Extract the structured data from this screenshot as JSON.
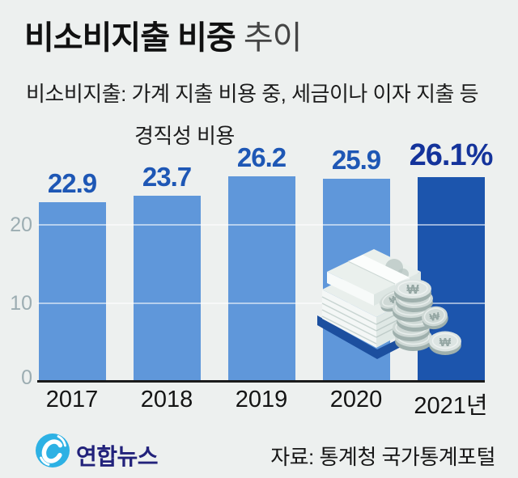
{
  "title": {
    "emphasis": "비소비지출 비중",
    "rest": " 추이"
  },
  "subtitle": {
    "line1": "비소비지출: 가계 지출 비용 중, 세금이나 이자 지출 등",
    "line2": "경직성 비용"
  },
  "chart_data": {
    "type": "bar",
    "categories": [
      "2017",
      "2018",
      "2019",
      "2020",
      "2021년"
    ],
    "values": [
      22.9,
      23.7,
      26.2,
      25.9,
      26.1
    ],
    "value_labels": [
      "22.9",
      "23.7",
      "26.2",
      "25.9",
      "26.1%"
    ],
    "highlight_index": 4,
    "yticks": [
      0,
      10,
      20
    ],
    "ytick_labels": [
      "0",
      "10",
      "20"
    ],
    "ylim": [
      0,
      27.5
    ],
    "grid": true,
    "legend": "none",
    "bar_color": "#5f97da",
    "highlight_bar_color": "#1c55ad",
    "value_label_color": "#1e57b5",
    "highlight_value_label_color": "#14339b"
  },
  "footer": {
    "logo_text": "연합뉴스",
    "source": "자료: 통계청 국가통계포털"
  },
  "icons": {
    "money_illustration": "banknote-stacks-and-won-coins",
    "logo": "yonhap-blue-swirl",
    "coin_symbol": "₩"
  },
  "colors": {
    "background": "#edf0ef",
    "axis_line": "#1b1b1b",
    "ytick_text": "#9cadb2",
    "title_text": "#111111",
    "logo_blue": "#2db1e4",
    "logo_navy": "#22227b",
    "shadow_blue": "#1c4f9f"
  }
}
